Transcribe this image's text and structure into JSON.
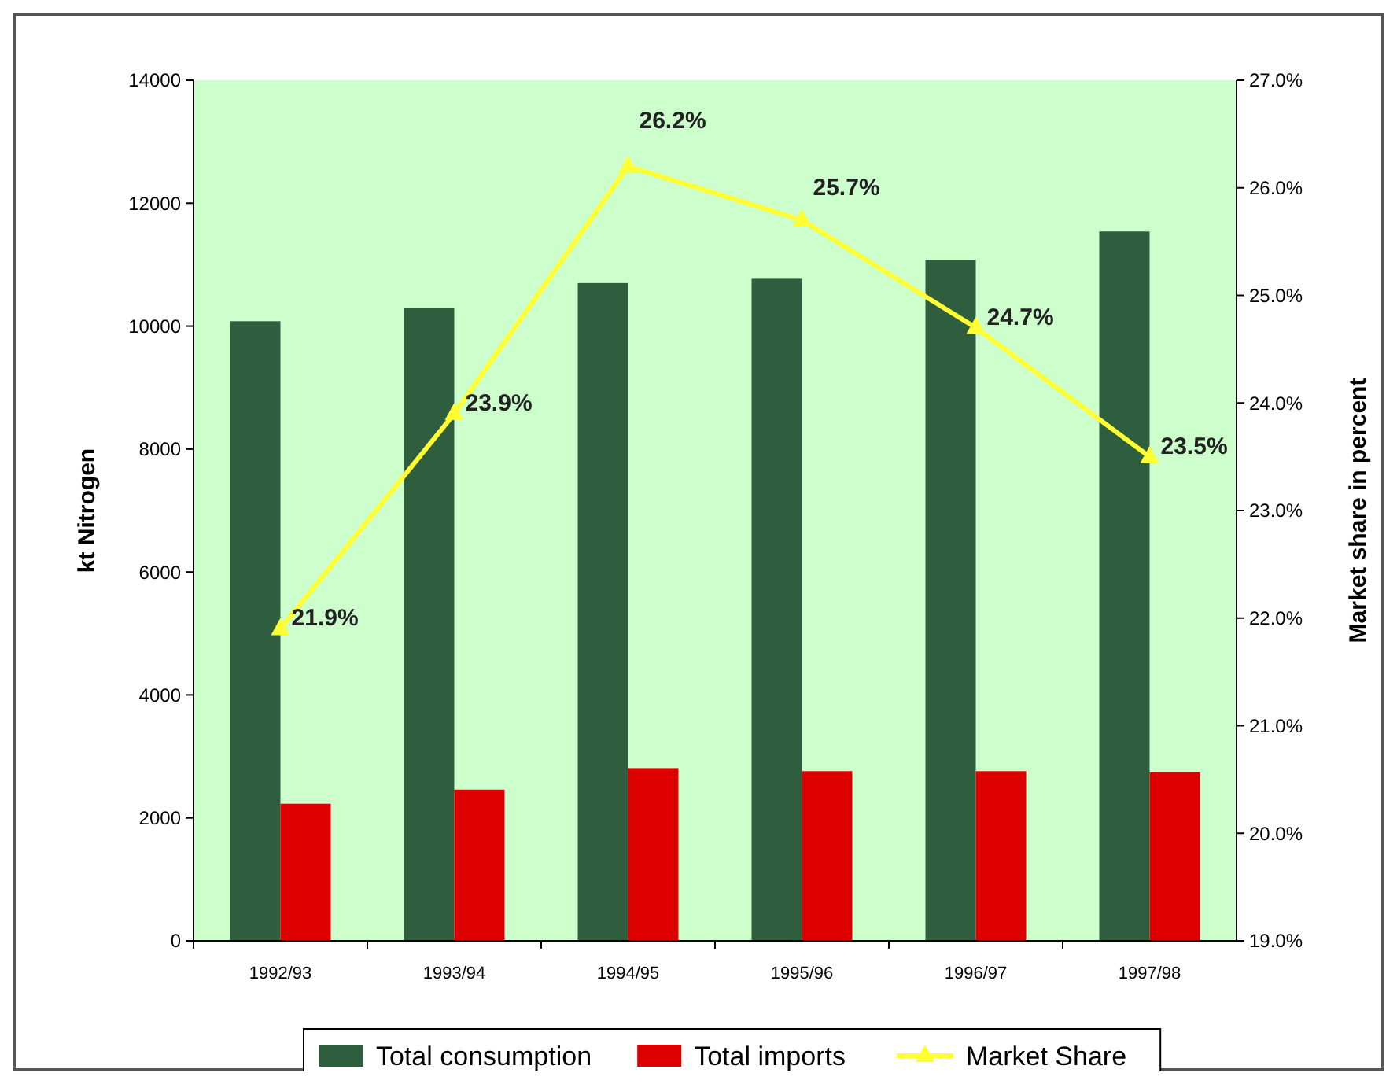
{
  "chart_data": {
    "type": "bar",
    "categories": [
      "1992/93",
      "1993/94",
      "1994/95",
      "1995/96",
      "1996/97",
      "1997/98"
    ],
    "ylabel": "kt Nitrogen",
    "y2label": "Market share in percent",
    "ylim": [
      0,
      14000
    ],
    "yticks": [
      0,
      2000,
      4000,
      6000,
      8000,
      10000,
      12000,
      14000
    ],
    "y2lim": [
      19,
      27
    ],
    "y2ticks": [
      {
        "value": 19,
        "label": "19.0%"
      },
      {
        "value": 20,
        "label": "20.0%"
      },
      {
        "value": 21,
        "label": "21.0%"
      },
      {
        "value": 22,
        "label": "22.0%"
      },
      {
        "value": 23,
        "label": "23.0%"
      },
      {
        "value": 24,
        "label": "24.0%"
      },
      {
        "value": 25,
        "label": "25.0%"
      },
      {
        "value": 26,
        "label": "26.0%"
      },
      {
        "value": 27,
        "label": "27.0%"
      }
    ],
    "series": [
      {
        "name": "Total consumption",
        "color": "#2f5e3e",
        "values": [
          10080,
          10290,
          10700,
          10770,
          11080,
          11540
        ]
      },
      {
        "name": "Total imports",
        "color": "#dd0000",
        "values": [
          2230,
          2460,
          2810,
          2760,
          2760,
          2740
        ]
      },
      {
        "name": "Market Share",
        "type": "line",
        "axis": "y2",
        "color": "#ffff33",
        "marker": "triangle",
        "values": [
          21.9,
          23.9,
          26.2,
          25.7,
          24.7,
          23.5
        ],
        "value_labels": [
          "21.9%",
          "23.9%",
          "26.2%",
          "25.7%",
          "24.7%",
          "23.5%"
        ]
      }
    ],
    "grid": false,
    "legend": "bottom"
  }
}
